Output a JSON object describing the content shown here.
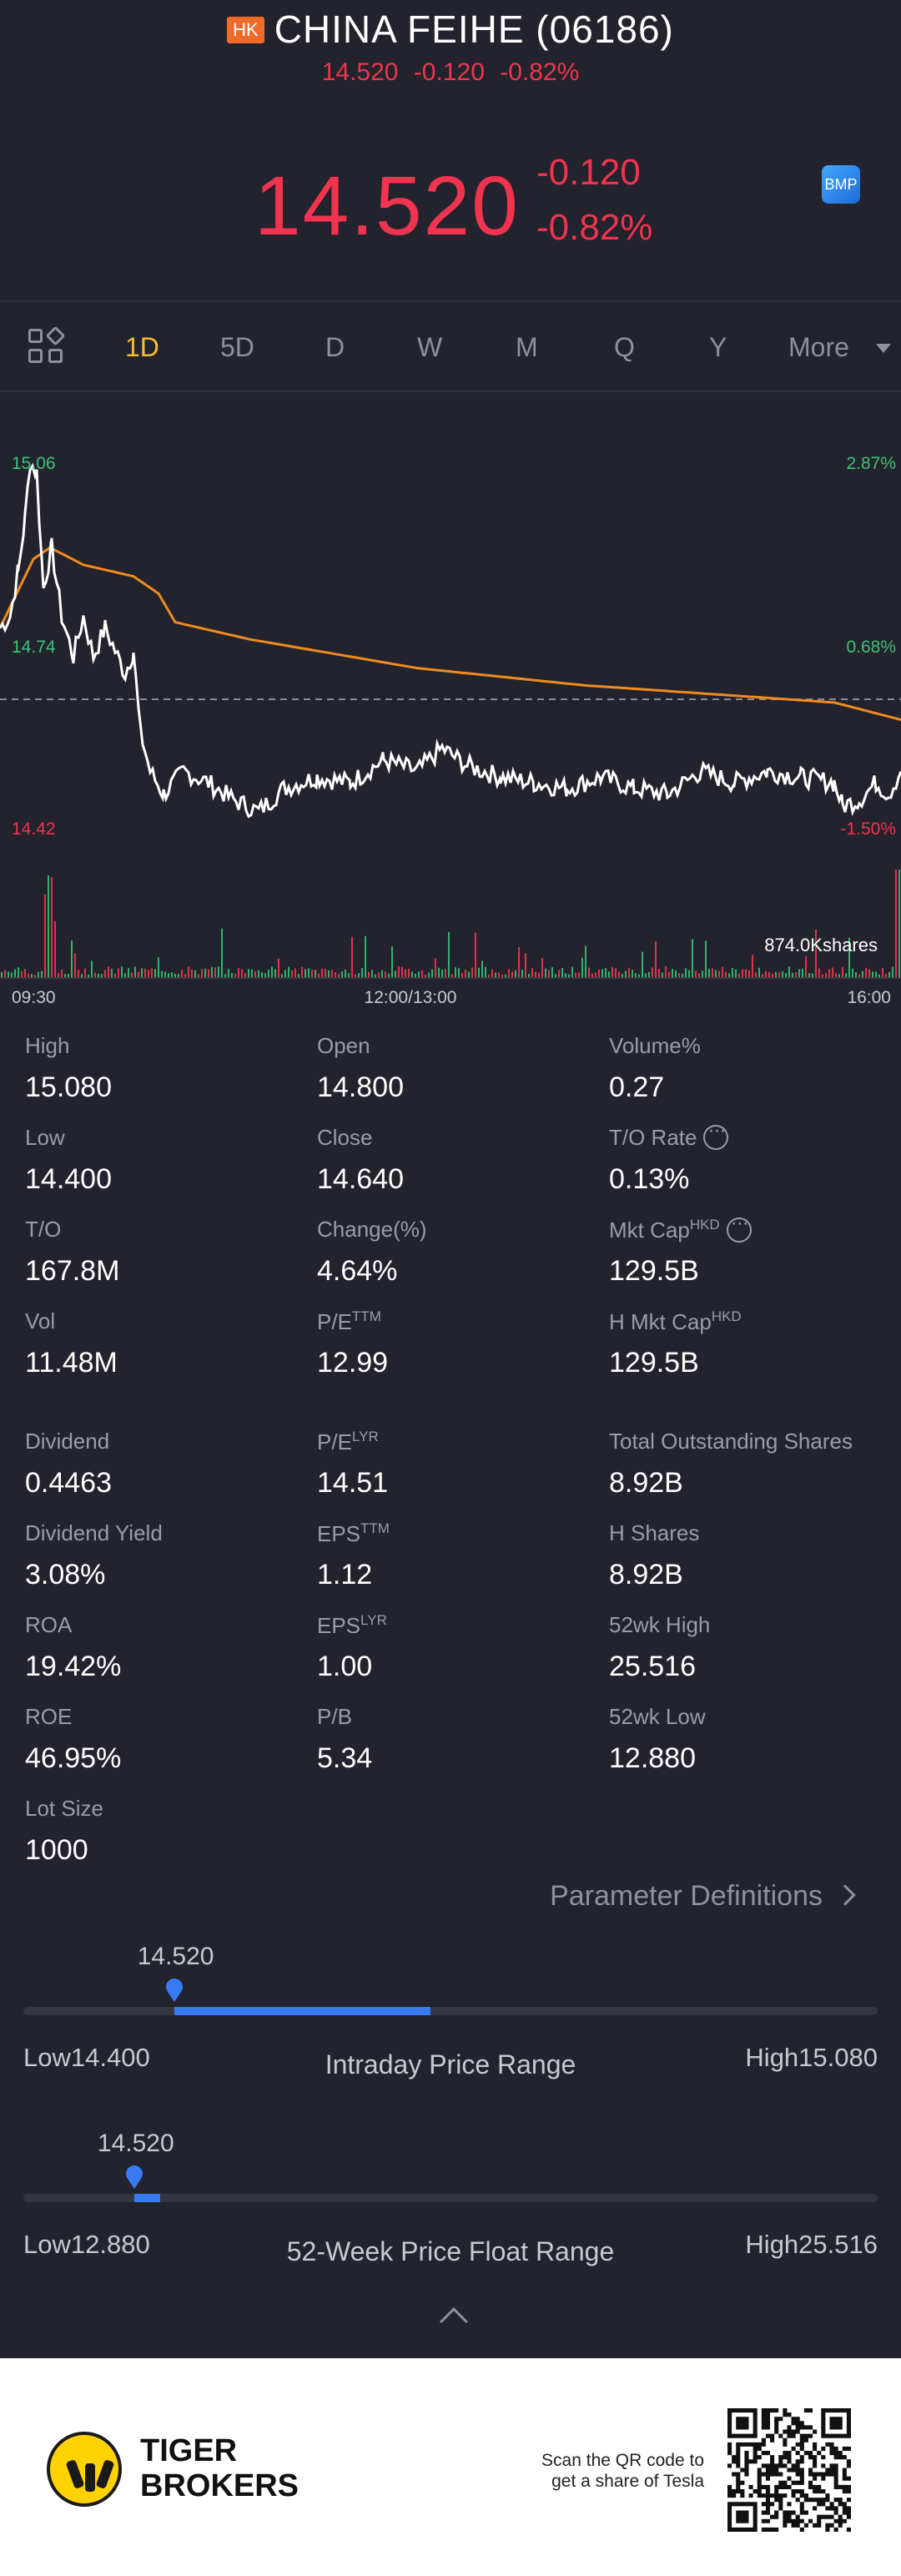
{
  "header": {
    "market_badge": "HK",
    "title": "CHINA FEIHE (06186)",
    "sub_price": "14.520",
    "sub_change": "-0.120",
    "sub_change_pct": "-0.82%",
    "price": "14.520",
    "change": "-0.120",
    "change_pct": "-0.82%",
    "bmp_label": "BMP"
  },
  "tabs": [
    {
      "label": "1D",
      "active": true
    },
    {
      "label": "5D"
    },
    {
      "label": "D"
    },
    {
      "label": "W"
    },
    {
      "label": "M"
    },
    {
      "label": "Q"
    },
    {
      "label": "Y"
    },
    {
      "label": "More"
    }
  ],
  "colors": {
    "background": "#22232c",
    "down_red": "#f0344f",
    "up_green": "#3ec27a",
    "active_tab": "#f5c12e",
    "avg_line": "#f08b1f",
    "accent_blue": "#3a7af5"
  },
  "chart_data": {
    "type": "line",
    "title": "",
    "y_left_ticks": [
      "15.06",
      "14.74",
      "14.42"
    ],
    "y_right_ticks": [
      "2.87%",
      "0.68%",
      "-1.50%"
    ],
    "x_ticks": [
      "09:30",
      "12:00/13:00",
      "16:00"
    ],
    "prev_close": 14.64,
    "ylim": [
      14.42,
      15.06
    ],
    "volume_label": "874.0Kshares",
    "series": [
      {
        "role": "price",
        "color": "#ffffff"
      },
      {
        "role": "average",
        "color": "#f08b1f"
      }
    ]
  },
  "stats": [
    {
      "label": "High",
      "value": "15.080"
    },
    {
      "label": "Open",
      "value": "14.800"
    },
    {
      "label": "Volume%",
      "value": "0.27"
    },
    {
      "label": "Low",
      "value": "14.400"
    },
    {
      "label": "Close",
      "value": "14.640"
    },
    {
      "label": "T/O Rate",
      "value": "0.13%",
      "info": true
    },
    {
      "label": "T/O",
      "value": "167.8M"
    },
    {
      "label": "Change(%)",
      "value": "4.64%"
    },
    {
      "label": "Mkt Cap",
      "sup": "HKD",
      "value": "129.5B",
      "info": true
    },
    {
      "label": "Vol",
      "value": "11.48M"
    },
    {
      "label": "P/E",
      "sup": "TTM",
      "value": "12.99"
    },
    {
      "label": "H Mkt Cap",
      "sup": "HKD",
      "value": "129.5B"
    },
    {
      "label": "Dividend",
      "value": "0.4463"
    },
    {
      "label": "P/E",
      "sup": "LYR",
      "value": "14.51"
    },
    {
      "label": "Total Outstanding Shares",
      "value": "8.92B"
    },
    {
      "label": "Dividend Yield",
      "value": "3.08%"
    },
    {
      "label": "EPS",
      "sup": "TTM",
      "value": "1.12"
    },
    {
      "label": "H Shares",
      "value": "8.92B"
    },
    {
      "label": "ROA",
      "value": "19.42%"
    },
    {
      "label": "EPS",
      "sup": "LYR",
      "value": "1.00"
    },
    {
      "label": "52wk High",
      "value": "25.516"
    },
    {
      "label": "ROE",
      "value": "46.95%"
    },
    {
      "label": "P/B",
      "value": "5.34"
    },
    {
      "label": "52wk Low",
      "value": "12.880"
    },
    {
      "label": "Lot Size",
      "value": "1000"
    }
  ],
  "param_definitions": "Parameter Definitions",
  "intraday": {
    "title": "Intraday Price Range",
    "current": "14.520",
    "low_label": "Low14.400",
    "high_label": "High15.080",
    "low": 14.4,
    "high": 15.08,
    "value": 14.52
  },
  "week52": {
    "title": "52-Week Price Float Range",
    "current": "14.520",
    "low_label": "Low12.880",
    "high_label": "High25.516",
    "low": 12.88,
    "high": 25.516,
    "value": 14.52
  },
  "footer": {
    "brand_line1": "TIGER",
    "brand_line2": "BROKERS",
    "scan_line1": "Scan the QR code to",
    "scan_line2": "get a share of Tesla"
  }
}
